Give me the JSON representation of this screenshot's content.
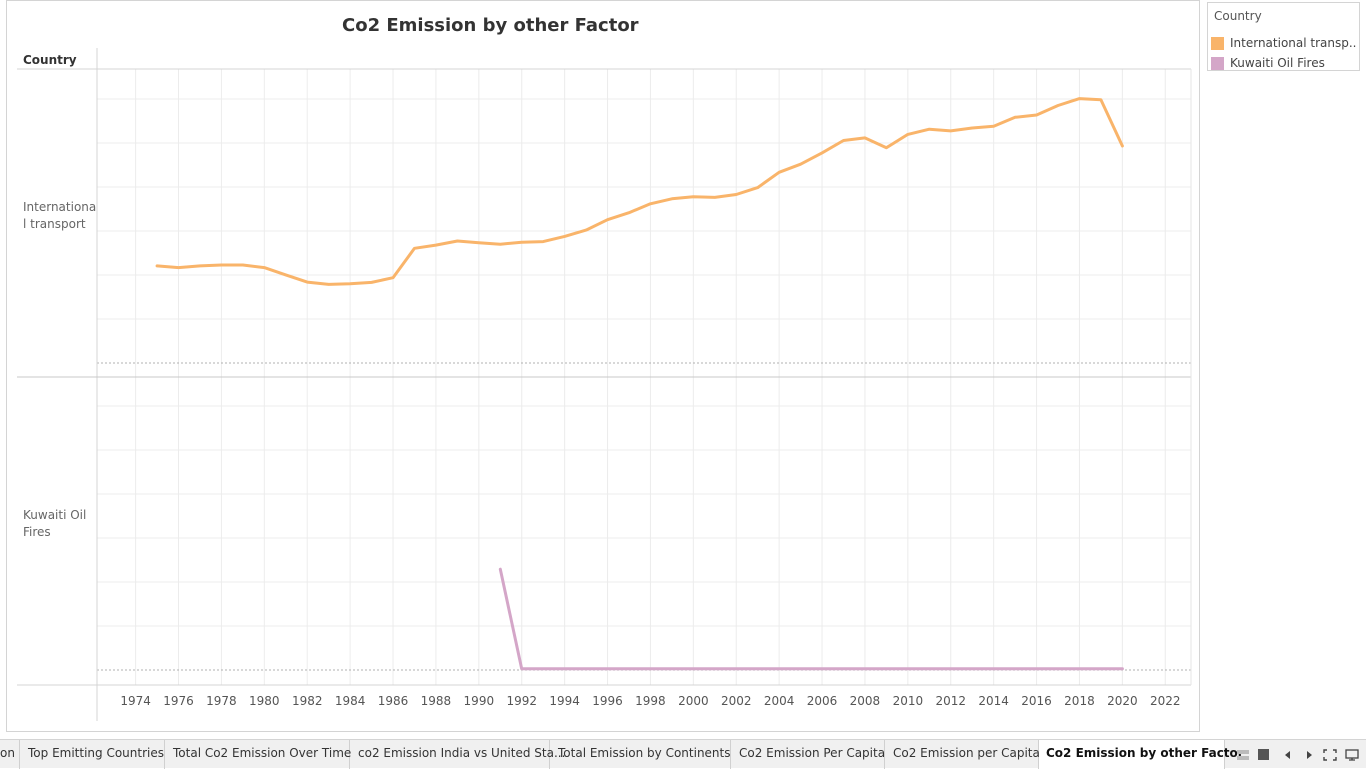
{
  "title": "Co2 Emission by other Factor",
  "row_header": "Country",
  "legend": {
    "title": "Country",
    "items": [
      {
        "label": "International transp..",
        "color": "#f9b46a"
      },
      {
        "label": "Kuwaiti Oil Fires",
        "color": "#d4a6c8"
      }
    ]
  },
  "chart_data": {
    "type": "line",
    "x_ticks": [
      "1974",
      "1976",
      "1978",
      "1980",
      "1982",
      "1984",
      "1986",
      "1988",
      "1990",
      "1992",
      "1994",
      "1996",
      "1998",
      "2000",
      "2002",
      "2004",
      "2006",
      "2008",
      "2010",
      "2012",
      "2014",
      "2016",
      "2018",
      "2020",
      "2022"
    ],
    "x_range": [
      1972.2,
      2023.2
    ],
    "panels": [
      {
        "label": "International transport",
        "label_lines": [
          "Internationa",
          "l transport"
        ],
        "color": "#f9b46a",
        "y_range": [
          0,
          100
        ],
        "x": [
          1975,
          1976,
          1977,
          1978,
          1979,
          1980,
          1981,
          1982,
          1983,
          1984,
          1985,
          1986,
          1987,
          1988,
          1989,
          1990,
          1991,
          1992,
          1993,
          1994,
          1995,
          1996,
          1997,
          1998,
          1999,
          2000,
          2001,
          2002,
          2003,
          2004,
          2005,
          2006,
          2007,
          2008,
          2009,
          2010,
          2011,
          2012,
          2013,
          2014,
          2015,
          2016,
          2017,
          2018,
          2019,
          2020
        ],
        "y": [
          33.6,
          33.0,
          33.6,
          33.9,
          33.9,
          33.0,
          30.5,
          28.0,
          27.2,
          27.4,
          27.9,
          29.5,
          39.7,
          40.8,
          42.2,
          41.6,
          41.1,
          41.8,
          42.0,
          43.8,
          46.0,
          49.6,
          52.0,
          55.1,
          56.8,
          57.5,
          57.3,
          58.3,
          60.7,
          66.0,
          68.8,
          72.7,
          77.0,
          77.9,
          74.5,
          79.1,
          80.9,
          80.3,
          81.3,
          81.9,
          85.0,
          85.8,
          89.1,
          91.5,
          91.1,
          75.1
        ]
      },
      {
        "label": "Kuwaiti Oil Fires",
        "label_lines": [
          "Kuwaiti Oil",
          "Fires"
        ],
        "color": "#d4a6c8",
        "y_range": [
          0,
          100
        ],
        "x": [
          1991,
          1992,
          1993,
          1994,
          1995,
          1996,
          1997,
          1998,
          1999,
          2000,
          2001,
          2002,
          2003,
          2004,
          2005,
          2006,
          2007,
          2008,
          2009,
          2010,
          2011,
          2012,
          2013,
          2014,
          2015,
          2016,
          2017,
          2018,
          2019,
          2020
        ],
        "y": [
          35.0,
          0.4,
          0.4,
          0.4,
          0.4,
          0.4,
          0.4,
          0.4,
          0.4,
          0.4,
          0.4,
          0.4,
          0.4,
          0.4,
          0.4,
          0.4,
          0.4,
          0.4,
          0.4,
          0.4,
          0.4,
          0.4,
          0.4,
          0.4,
          0.4,
          0.4,
          0.4,
          0.4,
          0.4,
          0.4
        ]
      }
    ]
  },
  "tabs": [
    {
      "label": "on"
    },
    {
      "label": "Top Emitting Countries"
    },
    {
      "label": "Total Co2 Emission Over Time"
    },
    {
      "label": "co2 Emission India vs United Sta..."
    },
    {
      "label": "Total Emission by Continents"
    },
    {
      "label": "Co2 Emission Per Capita"
    },
    {
      "label": "Co2 Emission per Capita"
    },
    {
      "label": "Co2 Emission by other Factor",
      "active": true
    }
  ],
  "nav_icons": [
    "grid-view-icon",
    "present-mode-icon",
    "prev-sheet-icon",
    "next-sheet-icon",
    "fullscreen-icon",
    "device-preview-icon"
  ]
}
